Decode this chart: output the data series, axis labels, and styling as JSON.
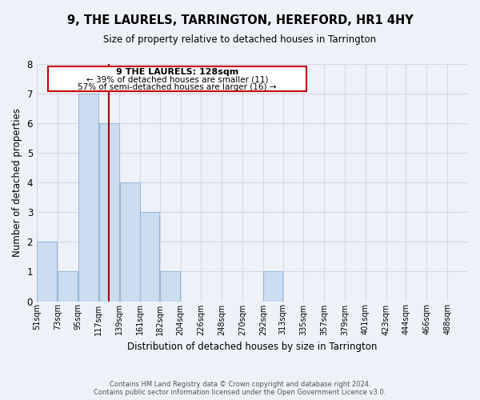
{
  "title": "9, THE LAURELS, TARRINGTON, HEREFORD, HR1 4HY",
  "subtitle": "Size of property relative to detached houses in Tarrington",
  "xlabel": "Distribution of detached houses by size in Tarrington",
  "ylabel": "Number of detached properties",
  "bin_labels": [
    "51sqm",
    "73sqm",
    "95sqm",
    "117sqm",
    "139sqm",
    "161sqm",
    "182sqm",
    "204sqm",
    "226sqm",
    "248sqm",
    "270sqm",
    "292sqm",
    "313sqm",
    "335sqm",
    "357sqm",
    "379sqm",
    "401sqm",
    "423sqm",
    "444sqm",
    "466sqm",
    "488sqm"
  ],
  "bin_edges": [
    51,
    73,
    95,
    117,
    139,
    161,
    182,
    204,
    226,
    248,
    270,
    292,
    313,
    335,
    357,
    379,
    401,
    423,
    444,
    466,
    488,
    510
  ],
  "counts": [
    2,
    1,
    7,
    6,
    4,
    3,
    1,
    0,
    0,
    0,
    0,
    1,
    0,
    0,
    0,
    0,
    0,
    0,
    0,
    0,
    0
  ],
  "bar_color": "#ccddf0",
  "bar_edge_color": "#9ab8d8",
  "property_size": 128,
  "property_label": "9 THE LAURELS: 128sqm",
  "annotation_line1": "← 39% of detached houses are smaller (11)",
  "annotation_line2": "57% of semi-detached houses are larger (16) →",
  "vline_color": "#aa0000",
  "rect_color": "#cc0000",
  "ylim": [
    0,
    8
  ],
  "yticks": [
    0,
    1,
    2,
    3,
    4,
    5,
    6,
    7,
    8
  ],
  "grid_color": "#d0d8e8",
  "bg_color": "#eef2f8",
  "footer1": "Contains HM Land Registry data © Crown copyright and database right 2024.",
  "footer2": "Contains public sector information licensed under the Open Government Licence v3.0."
}
